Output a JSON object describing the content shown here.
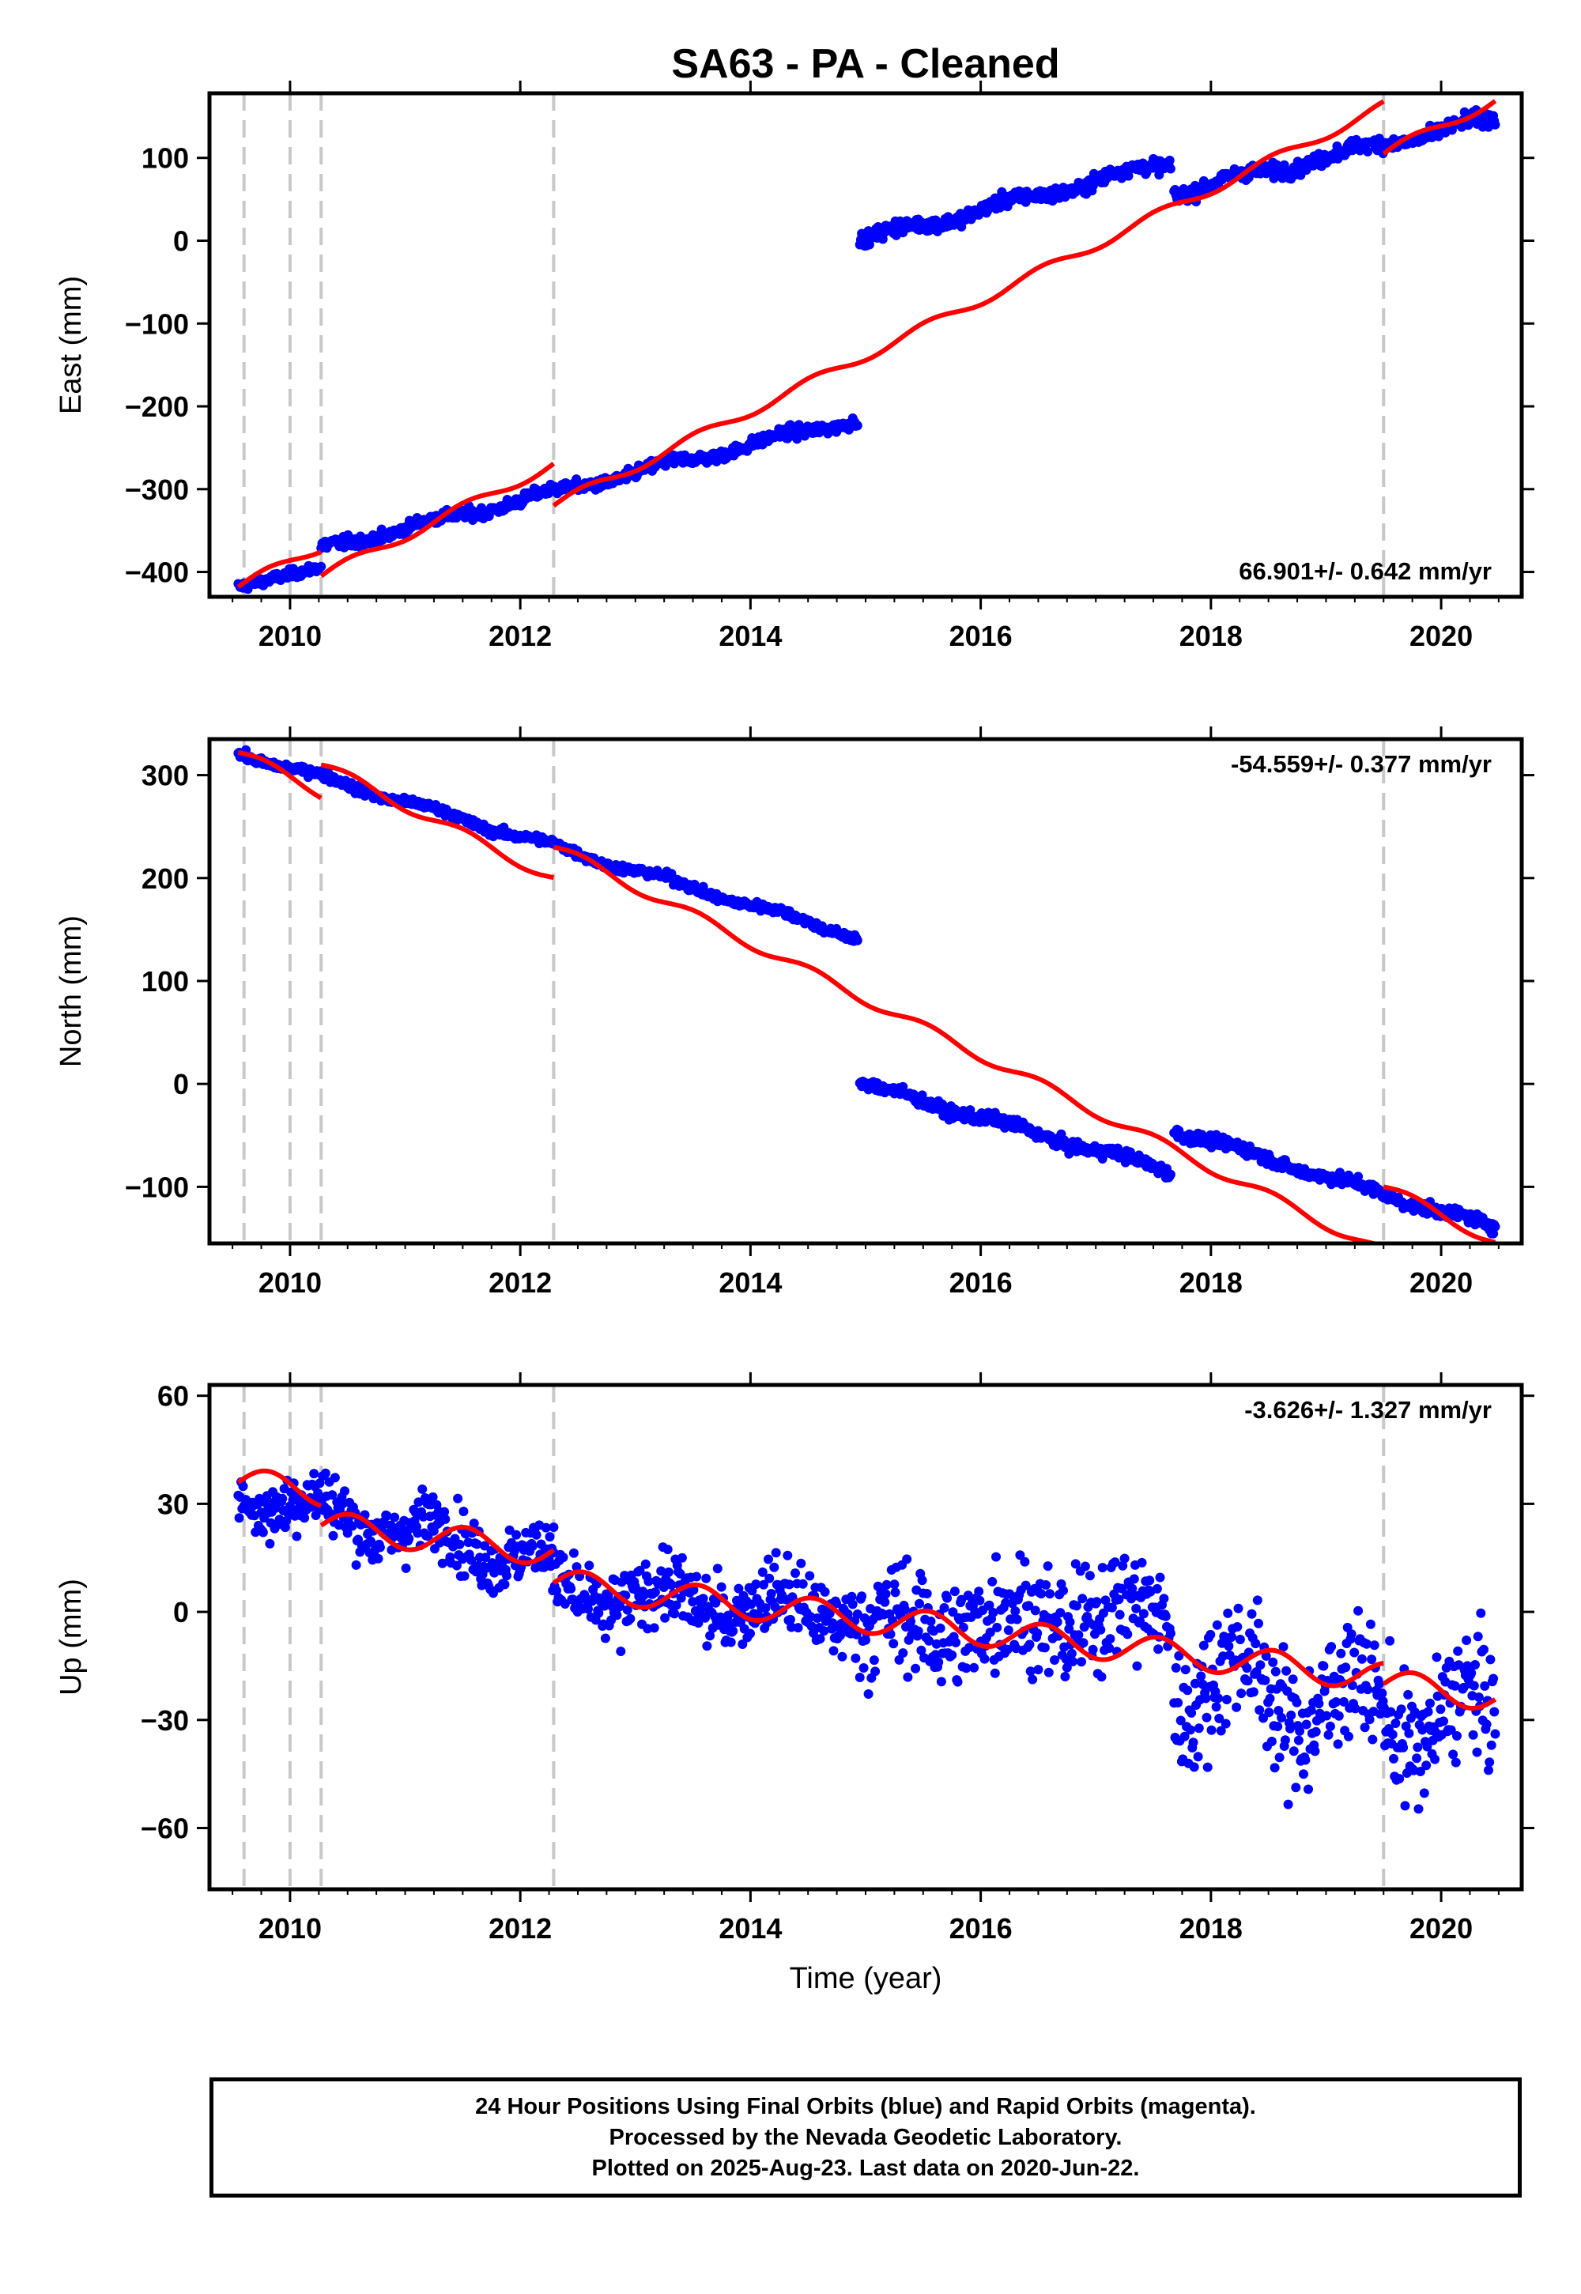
{
  "title": "SA63  - PA - Cleaned",
  "xlabel": "Time (year)",
  "footer": [
    "24 Hour Positions Using Final Orbits (blue) and Rapid Orbits (magenta).",
    "Processed by the Nevada Geodetic Laboratory.",
    "Plotted on 2025-Aug-23. Last data on 2020-Jun-22."
  ],
  "colors": {
    "data": "#0000ff",
    "model": "#ff0000",
    "breaks": "#c8c8c8",
    "axis": "#000000"
  },
  "xlim": [
    2009.3,
    2020.7
  ],
  "xticks": [
    2010,
    2012,
    2014,
    2016,
    2018,
    2020
  ],
  "breaks": [
    2009.6,
    2010.0,
    2010.27,
    2012.29,
    2019.5
  ],
  "chart_data": [
    {
      "type": "scatter",
      "ylabel": "East (mm)",
      "ylim": [
        -430,
        178
      ],
      "yticks": [
        -400,
        -300,
        -200,
        -100,
        0,
        100
      ],
      "rate_label": "66.901+/- 0.642 mm/yr",
      "series": [
        {
          "kind": "points",
          "segments": [
            {
              "t0": 2009.55,
              "t1": 2010.27,
              "y0": -418,
              "y1": -394,
              "scatter": 4,
              "amp": 0
            },
            {
              "t0": 2010.27,
              "t1": 2014.93,
              "y0": -372,
              "y1": -215,
              "scatter": 5,
              "amp": 4
            },
            {
              "t0": 2014.95,
              "t1": 2017.65,
              "y0": 0,
              "y1": 95,
              "scatter": 6,
              "amp": 5
            },
            {
              "t0": 2017.68,
              "t1": 2020.47,
              "y0": 58,
              "y1": 148,
              "scatter": 6,
              "amp": 5
            }
          ]
        },
        {
          "kind": "model",
          "rate": 66.901,
          "amp": 6,
          "segments": [
            {
              "t0": 2009.55,
              "t1": 2010.27,
              "y0": -418
            },
            {
              "t0": 2010.27,
              "t1": 2012.29,
              "y0": -405
            },
            {
              "t0": 2012.29,
              "t1": 2019.5,
              "y0": -320
            },
            {
              "t0": 2019.5,
              "t1": 2020.47,
              "y0": 105
            }
          ]
        }
      ]
    },
    {
      "type": "scatter",
      "ylabel": "North (mm)",
      "ylim": [
        -155,
        335
      ],
      "yticks": [
        -100,
        0,
        100,
        200,
        300
      ],
      "rate_label": "-54.559+/- 0.377 mm/yr",
      "series": [
        {
          "kind": "points",
          "segments": [
            {
              "t0": 2009.55,
              "t1": 2014.93,
              "y0": 322,
              "y1": 143,
              "scatter": 3,
              "amp": 3
            },
            {
              "t0": 2014.95,
              "t1": 2017.65,
              "y0": 0,
              "y1": -85,
              "scatter": 4,
              "amp": 3
            },
            {
              "t0": 2017.68,
              "t1": 2020.47,
              "y0": -45,
              "y1": -140,
              "scatter": 4,
              "amp": 3
            }
          ]
        },
        {
          "kind": "model",
          "rate": -54.559,
          "amp": 5,
          "segments": [
            {
              "t0": 2009.55,
              "t1": 2010.27,
              "y0": 322
            },
            {
              "t0": 2010.27,
              "t1": 2012.29,
              "y0": 310
            },
            {
              "t0": 2012.29,
              "t1": 2019.5,
              "y0": 230
            },
            {
              "t0": 2019.5,
              "t1": 2020.47,
              "y0": -100
            }
          ]
        }
      ]
    },
    {
      "type": "scatter",
      "ylabel": "Up (mm)",
      "ylim": [
        -77,
        63
      ],
      "yticks": [
        -60,
        -30,
        0,
        30,
        60
      ],
      "rate_label": "-3.626+/- 1.327 mm/yr",
      "series": [
        {
          "kind": "points",
          "segments": [
            {
              "t0": 2009.55,
              "t1": 2012.29,
              "y0": 33,
              "y1": 14,
              "scatter": 6,
              "amp": 4
            },
            {
              "t0": 2012.29,
              "t1": 2014.93,
              "y0": 5,
              "y1": 0,
              "scatter": 7,
              "amp": 4
            },
            {
              "t0": 2014.95,
              "t1": 2017.65,
              "y0": -5,
              "y1": 0,
              "scatter": 11,
              "amp": 4
            },
            {
              "t0": 2017.68,
              "t1": 2020.47,
              "y0": -18,
              "y1": -32,
              "scatter": 12,
              "amp": 10
            }
          ]
        },
        {
          "kind": "model",
          "rate": -3.626,
          "amp": 4,
          "segments": [
            {
              "t0": 2009.55,
              "t1": 2010.27,
              "y0": 36
            },
            {
              "t0": 2010.27,
              "t1": 2012.29,
              "y0": 24
            },
            {
              "t0": 2012.29,
              "t1": 2019.5,
              "y0": 8
            },
            {
              "t0": 2019.5,
              "t1": 2020.47,
              "y0": -20
            }
          ]
        }
      ]
    }
  ]
}
